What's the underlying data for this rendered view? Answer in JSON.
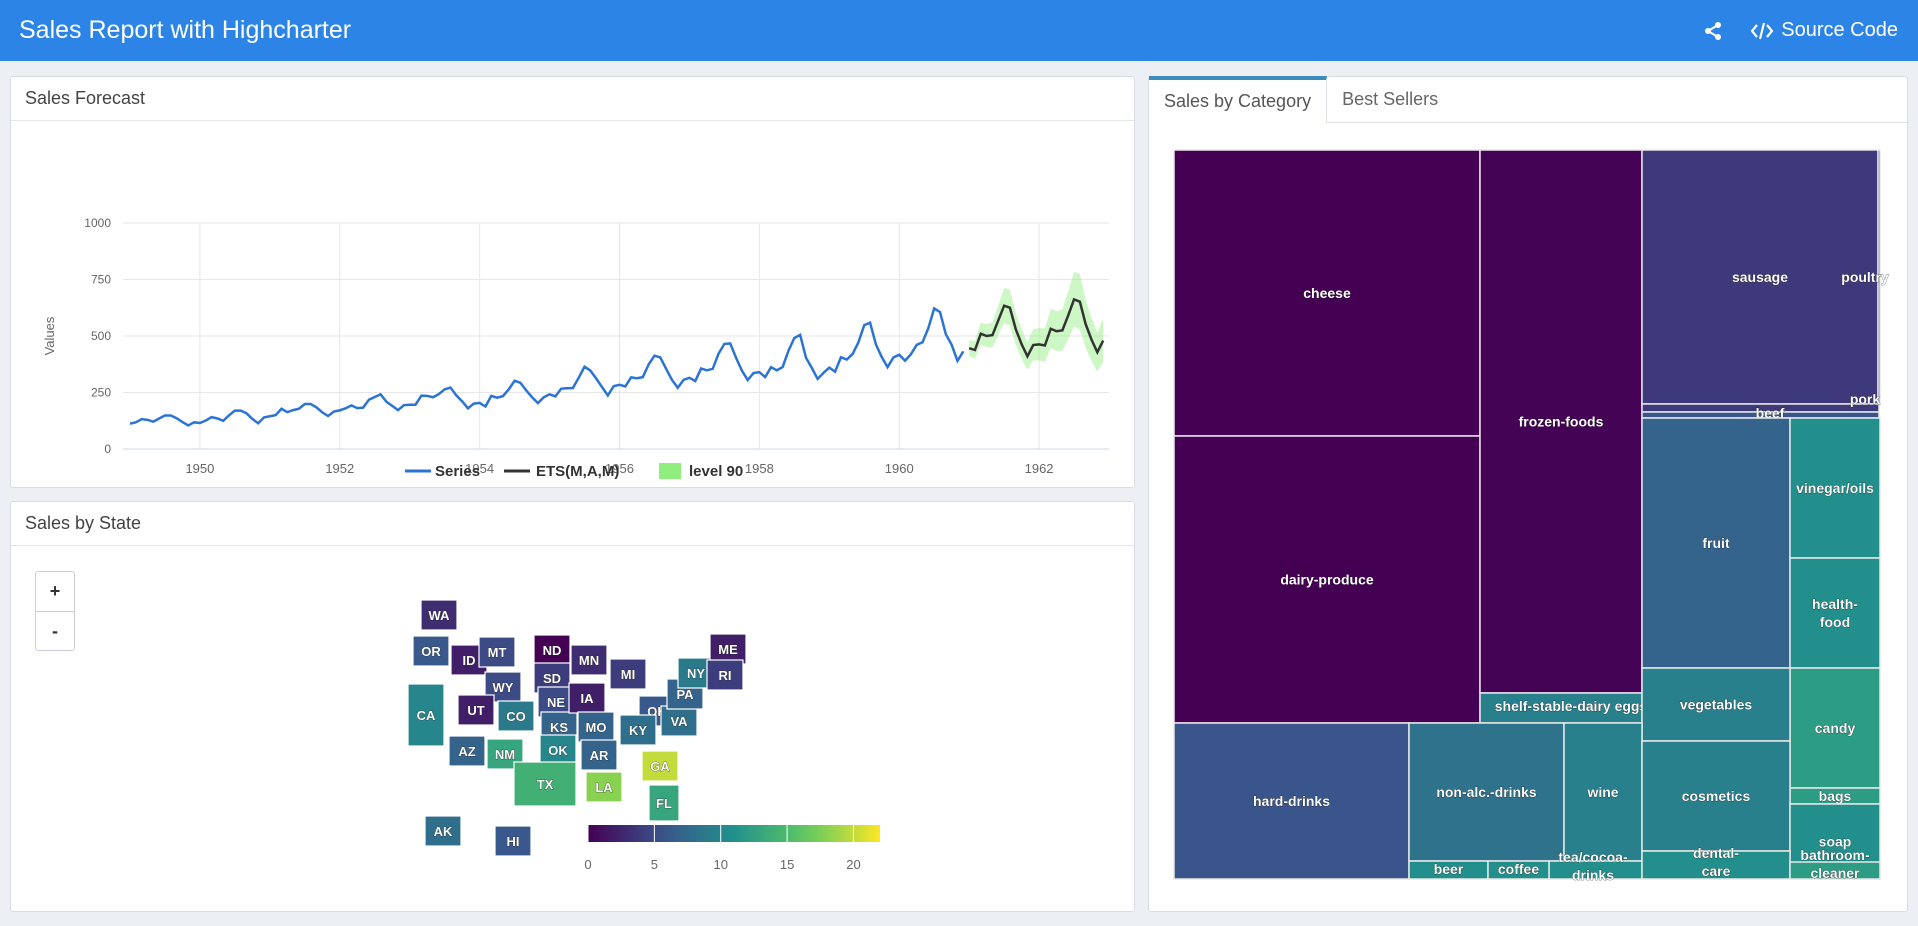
{
  "app": {
    "title": "Sales Report with Highcharter",
    "source_code_label": "Source Code"
  },
  "forecast": {
    "title": "Sales Forecast"
  },
  "state": {
    "title": "Sales by State",
    "zoom_in": "+",
    "zoom_out": "-"
  },
  "category": {
    "tabs": [
      "Sales by Category",
      "Best Sellers"
    ]
  },
  "colors": {
    "header": "#2b84e6",
    "series": "#2b74d4",
    "ets": "#333333",
    "band": "#90ee7e"
  },
  "chart_data": [
    {
      "type": "line",
      "ylabel": "Values",
      "ylim": [
        0,
        1000
      ],
      "yticks": [
        0,
        250,
        500,
        750,
        1000
      ],
      "xlim": [
        1948.9,
        1963
      ],
      "xticks": [
        1950,
        1952,
        1954,
        1956,
        1958,
        1960,
        1962
      ],
      "grid": true,
      "legend_position": "bottom",
      "series": [
        {
          "name": "Series",
          "x_start": 1949,
          "step": 0.0833333,
          "values": [
            112,
            118,
            132,
            129,
            121,
            135,
            148,
            148,
            136,
            119,
            104,
            118,
            115,
            126,
            141,
            135,
            125,
            149,
            170,
            170,
            158,
            133,
            114,
            140,
            145,
            150,
            178,
            163,
            172,
            178,
            199,
            199,
            184,
            162,
            146,
            166,
            171,
            180,
            193,
            181,
            183,
            218,
            230,
            242,
            209,
            191,
            172,
            194,
            196,
            196,
            236,
            235,
            229,
            243,
            264,
            272,
            237,
            211,
            180,
            201,
            204,
            188,
            235,
            227,
            234,
            264,
            302,
            293,
            259,
            229,
            203,
            229,
            242,
            233,
            267,
            269,
            270,
            315,
            364,
            347,
            312,
            274,
            237,
            278,
            284,
            277,
            317,
            313,
            318,
            374,
            413,
            405,
            355,
            306,
            271,
            306,
            315,
            301,
            356,
            348,
            355,
            422,
            465,
            467,
            404,
            347,
            305,
            336,
            340,
            318,
            362,
            348,
            363,
            435,
            491,
            505,
            404,
            359,
            310,
            337,
            360,
            342,
            406,
            396,
            420,
            472,
            548,
            559,
            463,
            407,
            362,
            405,
            417,
            391,
            419,
            461,
            472,
            535,
            622,
            606,
            508,
            461,
            390,
            432
          ]
        },
        {
          "name": "ETS(M,A,M)",
          "x_start": 1961,
          "step": 0.0833333,
          "values": [
            446,
            438,
            510,
            500,
            504,
            569,
            634,
            625,
            530,
            464,
            410,
            460,
            463,
            458,
            532,
            521,
            525,
            591,
            662,
            652,
            552,
            484,
            428,
            480
          ]
        },
        {
          "name": "level 90",
          "x_start": 1961,
          "step": 0.0833333,
          "lower": [
            410,
            400,
            462,
            450,
            449,
            504,
            557,
            546,
            460,
            400,
            350,
            392,
            392,
            385,
            446,
            434,
            434,
            487,
            542,
            530,
            447,
            390,
            342,
            384
          ],
          "upper": [
            482,
            478,
            560,
            552,
            560,
            636,
            712,
            705,
            600,
            530,
            472,
            530,
            536,
            532,
            620,
            610,
            618,
            697,
            783,
            775,
            658,
            580,
            515,
            578
          ]
        }
      ]
    },
    {
      "type": "heatmap",
      "subtype": "choropleth",
      "colorbar": {
        "min": 0,
        "max": 22,
        "ticks": [
          0,
          5,
          10,
          15,
          20
        ]
      },
      "regions": [
        {
          "code": "WA",
          "value": 3
        },
        {
          "code": "OR",
          "value": 6
        },
        {
          "code": "CA",
          "value": 10
        },
        {
          "code": "ID",
          "value": 2
        },
        {
          "code": "MT",
          "value": 5
        },
        {
          "code": "WY",
          "value": 5
        },
        {
          "code": "UT",
          "value": 2
        },
        {
          "code": "AZ",
          "value": 7
        },
        {
          "code": "NM",
          "value": 13
        },
        {
          "code": "CO",
          "value": 9
        },
        {
          "code": "ND",
          "value": 0
        },
        {
          "code": "SD",
          "value": 4
        },
        {
          "code": "NE",
          "value": 5
        },
        {
          "code": "KS",
          "value": 7
        },
        {
          "code": "OK",
          "value": 10
        },
        {
          "code": "TX",
          "value": 14
        },
        {
          "code": "MN",
          "value": 3
        },
        {
          "code": "IA",
          "value": 2
        },
        {
          "code": "MO",
          "value": 7
        },
        {
          "code": "AR",
          "value": 7
        },
        {
          "code": "LA",
          "value": 18
        },
        {
          "code": "MI",
          "value": 4
        },
        {
          "code": "OH",
          "value": 6
        },
        {
          "code": "KY",
          "value": 8
        },
        {
          "code": "VA",
          "value": 8
        },
        {
          "code": "PA",
          "value": 7
        },
        {
          "code": "NY",
          "value": 9
        },
        {
          "code": "ME",
          "value": 2
        },
        {
          "code": "RI",
          "value": 4
        },
        {
          "code": "GA",
          "value": 20
        },
        {
          "code": "FL",
          "value": 13
        },
        {
          "code": "AK",
          "value": 8
        },
        {
          "code": "HI",
          "value": 6
        }
      ]
    },
    {
      "type": "heatmap",
      "subtype": "treemap",
      "items": [
        {
          "name": "cheese",
          "value": 0.5
        },
        {
          "name": "dairy-produce",
          "value": 0.5
        },
        {
          "name": "frozen-foods",
          "value": 0.6
        },
        {
          "name": "sausage",
          "value": 3.5
        },
        {
          "name": "poultry",
          "value": 3.5
        },
        {
          "name": "pork",
          "value": 3.5
        },
        {
          "name": "beef",
          "value": 5
        },
        {
          "name": "fruit",
          "value": 6
        },
        {
          "name": "vinegar/oils",
          "value": 9
        },
        {
          "name": "health-food",
          "value": 9
        },
        {
          "name": "candy",
          "value": 10
        },
        {
          "name": "bags",
          "value": 10
        },
        {
          "name": "shelf-stable-dairy eggs",
          "value": 8
        },
        {
          "name": "vegetables",
          "value": 8
        },
        {
          "name": "hard-drinks",
          "value": 5
        },
        {
          "name": "non-alc.-drinks",
          "value": 7
        },
        {
          "name": "wine",
          "value": 8
        },
        {
          "name": "cosmetics",
          "value": 8
        },
        {
          "name": "soap",
          "value": 9
        },
        {
          "name": "tea/cocoa-drinks",
          "value": 9
        },
        {
          "name": "beer",
          "value": 9
        },
        {
          "name": "coffee",
          "value": 9
        },
        {
          "name": "dental-care",
          "value": 9
        },
        {
          "name": "bathroom-cleaner",
          "value": 10
        }
      ]
    }
  ]
}
